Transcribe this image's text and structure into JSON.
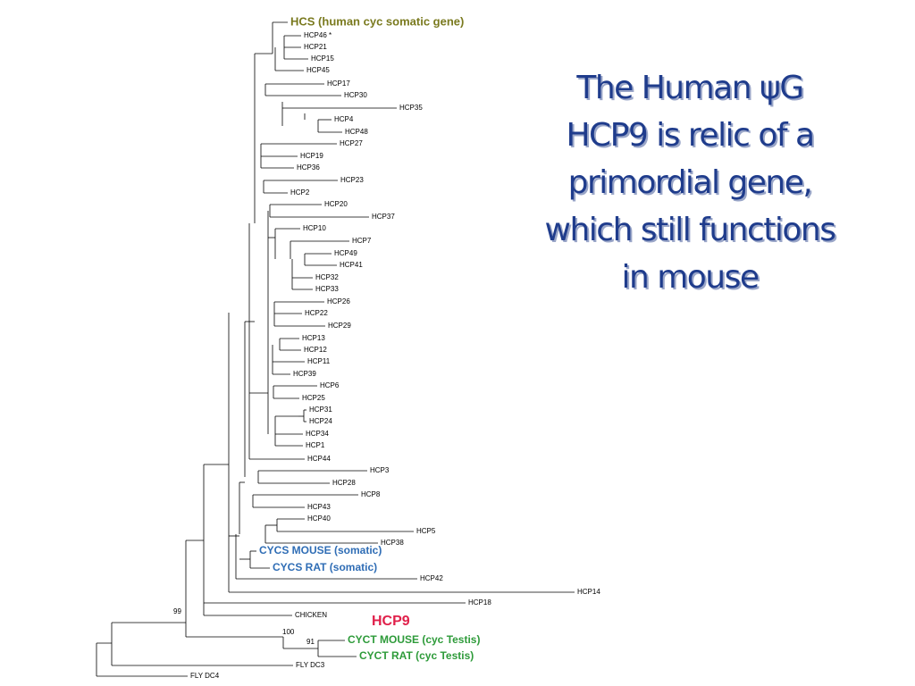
{
  "title": {
    "lines": [
      "The Human ψG",
      "HCP9 is relic of a",
      "primordial gene,",
      "which still functions",
      "in mouse"
    ]
  },
  "tree": {
    "leaves": [
      "HCS (human cyc somatic gene)",
      "HCP46 *",
      "HCP21",
      "HCP15",
      "HCP45",
      "HCP17",
      "HCP30",
      "HCP35",
      "HCP4",
      "HCP48",
      "HCP27",
      "HCP19",
      "HCP36",
      "HCP23",
      "HCP2",
      "HCP20",
      "HCP37",
      "HCP10",
      "HCP7",
      "HCP49",
      "HCP41",
      "HCP32",
      "HCP33",
      "HCP26",
      "HCP22",
      "HCP29",
      "HCP13",
      "HCP12",
      "HCP11",
      "HCP39",
      "HCP6",
      "HCP25",
      "HCP31",
      "HCP24",
      "HCP34",
      "HCP1",
      "HCP44",
      "HCP3",
      "HCP28",
      "HCP8",
      "HCP43",
      "HCP40",
      "HCP5",
      "HCP38",
      "CYCS MOUSE (somatic)",
      "CYCS RAT (somatic)",
      "HCP42",
      "HCP14",
      "HCP18",
      "CHICKEN",
      "HCP9",
      "CYCT MOUSE (cyc Testis)",
      "CYCT RAT (cyc Testis)",
      "FLY DC3",
      "FLY DC4"
    ],
    "bootstrap": [
      99,
      100,
      91
    ]
  }
}
